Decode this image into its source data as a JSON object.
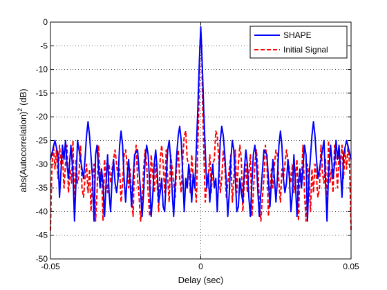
{
  "chart_data": {
    "type": "line",
    "xlabel": "Delay (sec)",
    "ylabel": "abs(Autocorrelation)",
    "ylabel_sup": "2",
    "ylabel_unit": " (dB)",
    "xlim": [
      -0.05,
      0.05
    ],
    "ylim": [
      -50,
      0
    ],
    "xticks": [
      -0.05,
      0,
      0.05
    ],
    "xtick_labels": [
      "-0.05",
      "0",
      "0.05"
    ],
    "yticks": [
      0,
      -5,
      -10,
      -15,
      -20,
      -25,
      -30,
      -35,
      -40,
      -45,
      -50
    ],
    "ytick_labels": [
      "0",
      "-5",
      "-10",
      "-15",
      "-20",
      "-25",
      "-30",
      "-35",
      "-40",
      "-45",
      "-50"
    ],
    "grid": "dotted",
    "legend_position": "top-right",
    "series": [
      {
        "name": "SHAPE",
        "color": "#0000ff",
        "style": "solid",
        "x": [
          -0.05,
          -0.0485,
          -0.0475,
          -0.047,
          -0.046,
          -0.0455,
          -0.045,
          -0.0445,
          -0.044,
          -0.0432,
          -0.0425,
          -0.042,
          -0.041,
          -0.04,
          -0.039,
          -0.0385,
          -0.038,
          -0.0375,
          -0.037,
          -0.036,
          -0.0355,
          -0.035,
          -0.0345,
          -0.034,
          -0.0335,
          -0.033,
          -0.0325,
          -0.032,
          -0.0315,
          -0.031,
          -0.0305,
          -0.03,
          -0.0295,
          -0.029,
          -0.0285,
          -0.028,
          -0.0275,
          -0.027,
          -0.0265,
          -0.026,
          -0.0255,
          -0.025,
          -0.0245,
          -0.024,
          -0.0235,
          -0.023,
          -0.0225,
          -0.022,
          -0.021,
          -0.02,
          -0.0195,
          -0.019,
          -0.0185,
          -0.018,
          -0.0175,
          -0.017,
          -0.0165,
          -0.016,
          -0.0155,
          -0.015,
          -0.0145,
          -0.014,
          -0.0135,
          -0.013,
          -0.0125,
          -0.012,
          -0.0115,
          -0.011,
          -0.0105,
          -0.01,
          -0.0095,
          -0.009,
          -0.0085,
          -0.008,
          -0.0075,
          -0.007,
          -0.0065,
          -0.006,
          -0.0055,
          -0.005,
          -0.0045,
          -0.004,
          -0.0035,
          -0.003,
          -0.0025,
          -0.002,
          -0.0015,
          -0.001,
          -0.0005,
          0,
          0.0005,
          0.001,
          0.0015,
          0.002,
          0.0025,
          0.003,
          0.0035,
          0.004,
          0.0045,
          0.005,
          0.0055,
          0.006,
          0.0065,
          0.007,
          0.0075,
          0.008,
          0.0085,
          0.009,
          0.0095,
          0.01,
          0.0105,
          0.011,
          0.0115,
          0.012,
          0.0125,
          0.013,
          0.0135,
          0.014,
          0.0145,
          0.015,
          0.0155,
          0.016,
          0.0165,
          0.017,
          0.0175,
          0.018,
          0.0185,
          0.019,
          0.0195,
          0.02,
          0.021,
          0.022,
          0.0225,
          0.023,
          0.0235,
          0.024,
          0.0245,
          0.025,
          0.0255,
          0.026,
          0.0265,
          0.027,
          0.0275,
          0.028,
          0.0285,
          0.029,
          0.0295,
          0.03,
          0.0305,
          0.031,
          0.0315,
          0.032,
          0.0325,
          0.033,
          0.0335,
          0.034,
          0.0345,
          0.035,
          0.0355,
          0.036,
          0.037,
          0.0375,
          0.038,
          0.0385,
          0.039,
          0.04,
          0.041,
          0.042,
          0.0425,
          0.0432,
          0.044,
          0.0445,
          0.045,
          0.0455,
          0.046,
          0.047,
          0.0475,
          0.0485,
          0.05
        ],
        "y": [
          -29,
          -25,
          -28,
          -37,
          -26,
          -29,
          -25,
          -30,
          -33,
          -26,
          -32,
          -42,
          -25,
          -29,
          -33,
          -29,
          -24,
          -21,
          -24,
          -33,
          -42,
          -28,
          -26,
          -31,
          -35,
          -31,
          -34,
          -41,
          -34,
          -28,
          -36,
          -40,
          -33,
          -29,
          -34,
          -36,
          -33,
          -26,
          -23,
          -26,
          -33,
          -38,
          -33,
          -29,
          -34,
          -39,
          -33,
          -28,
          -27,
          -36,
          -41,
          -36,
          -29,
          -26,
          -28,
          -34,
          -41,
          -37,
          -30,
          -27,
          -31,
          -38,
          -36,
          -33,
          -39,
          -40,
          -33,
          -27,
          -25,
          -29,
          -36,
          -41,
          -34,
          -28,
          -24,
          -22,
          -25,
          -32,
          -40,
          -33,
          -35,
          -30,
          -33,
          -38,
          -32,
          -35,
          -27,
          -19,
          -9,
          -1,
          -9,
          -19,
          -27,
          -35,
          -32,
          -38,
          -33,
          -30,
          -35,
          -33,
          -40,
          -32,
          -25,
          -22,
          -24,
          -28,
          -34,
          -41,
          -36,
          -29,
          -25,
          -27,
          -33,
          -40,
          -39,
          -33,
          -36,
          -38,
          -31,
          -27,
          -30,
          -37,
          -41,
          -34,
          -28,
          -26,
          -29,
          -36,
          -41,
          -36,
          -27,
          -28,
          -33,
          -39,
          -34,
          -29,
          -33,
          -38,
          -33,
          -26,
          -23,
          -26,
          -33,
          -36,
          -34,
          -29,
          -33,
          -40,
          -36,
          -28,
          -34,
          -41,
          -34,
          -31,
          -35,
          -31,
          -26,
          -28,
          -42,
          -33,
          -24,
          -21,
          -24,
          -29,
          -33,
          -29,
          -25,
          -42,
          -32,
          -26,
          -33,
          -30,
          -25,
          -29,
          -26,
          -37,
          -28,
          -25,
          -29
        ]
      },
      {
        "name": "Initial Signal",
        "color": "#ff0000",
        "style": "dashed",
        "x": [
          -0.05,
          -0.0495,
          -0.049,
          -0.0485,
          -0.048,
          -0.0475,
          -0.047,
          -0.0465,
          -0.046,
          -0.0455,
          -0.045,
          -0.0445,
          -0.044,
          -0.0435,
          -0.043,
          -0.0425,
          -0.042,
          -0.0415,
          -0.041,
          -0.0405,
          -0.04,
          -0.0395,
          -0.039,
          -0.0385,
          -0.038,
          -0.0375,
          -0.037,
          -0.0365,
          -0.036,
          -0.0355,
          -0.035,
          -0.0345,
          -0.034,
          -0.0335,
          -0.033,
          -0.0325,
          -0.032,
          -0.0315,
          -0.031,
          -0.0305,
          -0.03,
          -0.0295,
          -0.029,
          -0.0285,
          -0.028,
          -0.0275,
          -0.027,
          -0.0265,
          -0.026,
          -0.0255,
          -0.025,
          -0.0245,
          -0.024,
          -0.0235,
          -0.023,
          -0.0225,
          -0.022,
          -0.0215,
          -0.021,
          -0.0205,
          -0.02,
          -0.0195,
          -0.019,
          -0.0185,
          -0.018,
          -0.0175,
          -0.017,
          -0.0165,
          -0.016,
          -0.0155,
          -0.015,
          -0.0145,
          -0.014,
          -0.0135,
          -0.013,
          -0.0125,
          -0.012,
          -0.0115,
          -0.011,
          -0.0105,
          -0.01,
          -0.0095,
          -0.009,
          -0.0085,
          -0.008,
          -0.0075,
          -0.007,
          -0.0065,
          -0.006,
          -0.0055,
          -0.005,
          -0.0045,
          -0.004,
          -0.0035,
          -0.003,
          -0.0025,
          -0.002,
          -0.0015,
          -0.001,
          -0.0006,
          -0.0003,
          0,
          0.0003,
          0.0006,
          0.001,
          0.0015,
          0.002,
          0.0025,
          0.003,
          0.0035,
          0.004,
          0.0045,
          0.005,
          0.0055,
          0.006,
          0.0065,
          0.007,
          0.0075,
          0.008,
          0.0085,
          0.009,
          0.0095,
          0.01,
          0.0105,
          0.011,
          0.0115,
          0.012,
          0.0125,
          0.013,
          0.0135,
          0.014,
          0.0145,
          0.015,
          0.0155,
          0.016,
          0.0165,
          0.017,
          0.0175,
          0.018,
          0.0185,
          0.019,
          0.0195,
          0.02,
          0.0205,
          0.021,
          0.0215,
          0.022,
          0.0225,
          0.023,
          0.0235,
          0.024,
          0.0245,
          0.025,
          0.0255,
          0.026,
          0.0265,
          0.027,
          0.0275,
          0.028,
          0.0285,
          0.029,
          0.0295,
          0.03,
          0.0305,
          0.031,
          0.0315,
          0.032,
          0.0325,
          0.033,
          0.0335,
          0.034,
          0.0345,
          0.035,
          0.0355,
          0.036,
          0.0365,
          0.037,
          0.0375,
          0.038,
          0.0385,
          0.039,
          0.0395,
          0.04,
          0.0405,
          0.041,
          0.0415,
          0.042,
          0.0425,
          0.043,
          0.0435,
          0.044,
          0.0445,
          0.045,
          0.0455,
          0.046,
          0.0465,
          0.047,
          0.0475,
          0.048,
          0.0485,
          0.049,
          0.0495,
          0.05
        ],
        "y": [
          -44,
          -30,
          -26,
          -31,
          -27,
          -33,
          -26,
          -30,
          -28,
          -35,
          -30,
          -26,
          -36,
          -31,
          -34,
          -25,
          -40,
          -29,
          -34,
          -32,
          -26,
          -35,
          -37,
          -33,
          -30,
          -36,
          -31,
          -40,
          -33,
          -30,
          -42,
          -36,
          -26,
          -33,
          -31,
          -42,
          -29,
          -33,
          -36,
          -30,
          -34,
          -31,
          -29,
          -27,
          -30,
          -33,
          -31,
          -38,
          -34,
          -28,
          -27,
          -30,
          -35,
          -31,
          -37,
          -41,
          -29,
          -26,
          -33,
          -37,
          -42,
          -38,
          -31,
          -27,
          -30,
          -36,
          -41,
          -28,
          -32,
          -36,
          -30,
          -34,
          -40,
          -29,
          -26,
          -30,
          -36,
          -27,
          -33,
          -38,
          -28,
          -31,
          -34,
          -37,
          -30,
          -27,
          -33,
          -36,
          -29,
          -24,
          -23,
          -29,
          -30,
          -36,
          -28,
          -33,
          -34,
          -38,
          -27,
          -17,
          -5,
          -2,
          -5,
          -17,
          -27,
          -38,
          -34,
          -33,
          -28,
          -36,
          -30,
          -29,
          -23,
          -24,
          -29,
          -36,
          -33,
          -27,
          -30,
          -37,
          -34,
          -31,
          -28,
          -38,
          -33,
          -27,
          -36,
          -30,
          -26,
          -29,
          -40,
          -34,
          -30,
          -36,
          -32,
          -28,
          -41,
          -36,
          -30,
          -27,
          -31,
          -38,
          -42,
          -37,
          -33,
          -26,
          -29,
          -41,
          -37,
          -31,
          -35,
          -30,
          -27,
          -28,
          -34,
          -38,
          -31,
          -33,
          -30,
          -27,
          -29,
          -31,
          -34,
          -30,
          -36,
          -33,
          -29,
          -42,
          -31,
          -33,
          -26,
          -36,
          -42,
          -30,
          -33,
          -40,
          -31,
          -36,
          -30,
          -33,
          -37,
          -35,
          -26,
          -32,
          -34,
          -29,
          -40,
          -25,
          -34,
          -31,
          -36,
          -26,
          -30,
          -35,
          -28,
          -30,
          -26,
          -33,
          -27,
          -31,
          -26,
          -30,
          -44
        ]
      }
    ]
  }
}
